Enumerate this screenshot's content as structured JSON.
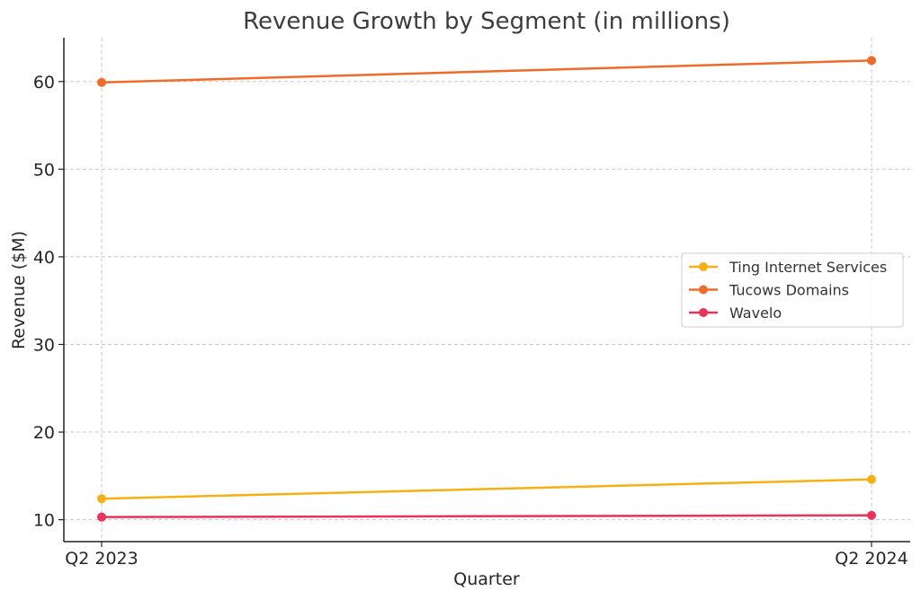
{
  "chart_data": {
    "type": "line",
    "title": "Revenue Growth by Segment (in millions)",
    "xlabel": "Quarter",
    "ylabel": "Revenue ($M)",
    "categories": [
      "Q2 2023",
      "Q2 2024"
    ],
    "ylim": [
      7.5,
      65
    ],
    "yticks": [
      10,
      20,
      30,
      40,
      50,
      60
    ],
    "grid": true,
    "legend_position": "center-right",
    "series": [
      {
        "name": "Ting Internet Services",
        "values": [
          12.4,
          14.6
        ],
        "color": "#f5b014"
      },
      {
        "name": "Tucows Domains",
        "values": [
          59.9,
          62.4
        ],
        "color": "#ee6c2b"
      },
      {
        "name": "Wavelo",
        "values": [
          10.3,
          10.5
        ],
        "color": "#e8335a"
      }
    ]
  }
}
